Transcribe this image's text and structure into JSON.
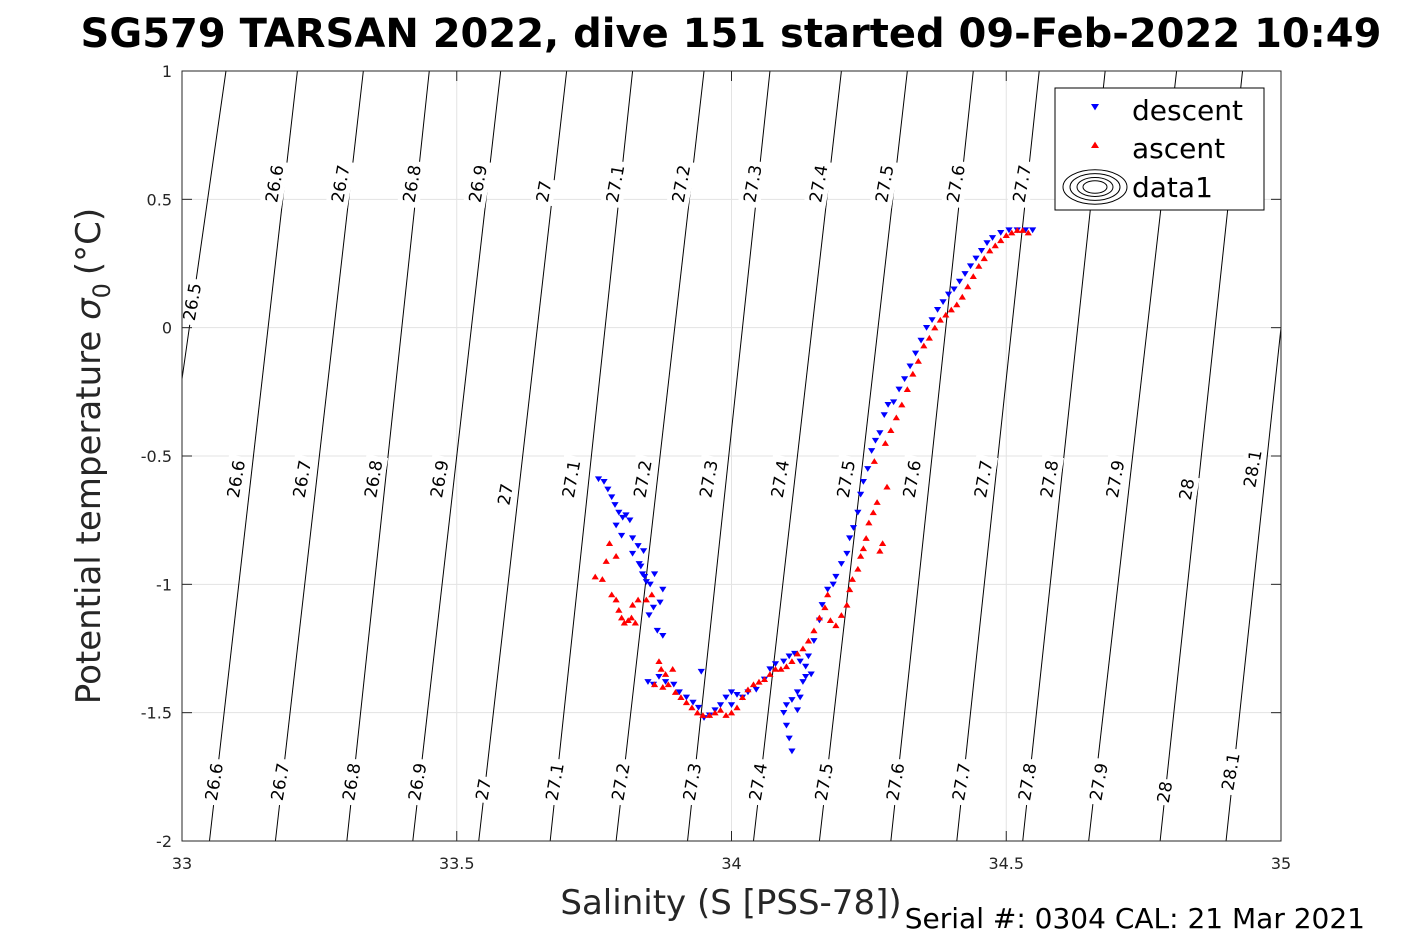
{
  "chart_data": {
    "type": "scatter",
    "title": "SG579 TARSAN 2022, dive 151 started 09-Feb-2022 10:49",
    "xlabel": "Salinity (S [PSS-78])",
    "ylabel_main": "Potential temperature",
    "ylabel_sigma": "σ",
    "ylabel_sub": "0",
    "ylabel_unit": "(°C)",
    "xlim": [
      33,
      35
    ],
    "ylim": [
      -2,
      1
    ],
    "xticks": [
      33,
      33.5,
      34,
      34.5,
      35
    ],
    "xtick_labels": [
      "33",
      "33.5",
      "34",
      "34.5",
      "35"
    ],
    "yticks": [
      -2,
      -1.5,
      -1,
      -0.5,
      0,
      0.5,
      1
    ],
    "ytick_labels": [
      "-2",
      "-1.5",
      "-1",
      "-0.5",
      "0",
      "0.5",
      "1"
    ],
    "grid": true,
    "legend_position": "top-right",
    "legend": [
      {
        "label": "descent",
        "marker": "triangle-down",
        "color": "#0000ff"
      },
      {
        "label": "ascent",
        "marker": "triangle-up",
        "color": "#ff0000"
      },
      {
        "label": "data1",
        "marker": "contour",
        "color": "#000000"
      }
    ],
    "isopycnals": [
      {
        "label": "26.5",
        "bottom_s": 32.88,
        "top_s": 33.08
      },
      {
        "label": "26.6",
        "bottom_s": 33.05,
        "top_s": 33.21
      },
      {
        "label": "26.7",
        "bottom_s": 33.17,
        "top_s": 33.33
      },
      {
        "label": "26.8",
        "bottom_s": 33.3,
        "top_s": 33.45
      },
      {
        "label": "26.9",
        "bottom_s": 33.42,
        "top_s": 33.58
      },
      {
        "label": "27",
        "bottom_s": 33.54,
        "top_s": 33.7
      },
      {
        "label": "27.1",
        "bottom_s": 33.67,
        "top_s": 33.82
      },
      {
        "label": "27.2",
        "bottom_s": 33.79,
        "top_s": 33.95
      },
      {
        "label": "27.3",
        "bottom_s": 33.92,
        "top_s": 34.07
      },
      {
        "label": "27.4",
        "bottom_s": 34.04,
        "top_s": 34.2
      },
      {
        "label": "27.5",
        "bottom_s": 34.16,
        "top_s": 34.32
      },
      {
        "label": "27.6",
        "bottom_s": 34.29,
        "top_s": 34.44
      },
      {
        "label": "27.7",
        "bottom_s": 34.41,
        "top_s": 34.56
      },
      {
        "label": "27.8",
        "bottom_s": 34.53,
        "top_s": 34.68
      },
      {
        "label": "27.9",
        "bottom_s": 34.65,
        "top_s": 34.81
      },
      {
        "label": "28",
        "bottom_s": 34.78,
        "top_s": 34.93
      },
      {
        "label": "28.1",
        "bottom_s": 34.9,
        "top_s": 35.05
      }
    ],
    "contour_labels": [
      {
        "text": "26.5",
        "s": 33.02,
        "t": 0.1
      },
      {
        "text": "26.6",
        "s": 33.17,
        "t": 0.56
      },
      {
        "text": "26.7",
        "s": 33.29,
        "t": 0.56
      },
      {
        "text": "26.8",
        "s": 33.42,
        "t": 0.56
      },
      {
        "text": "26.9",
        "s": 33.54,
        "t": 0.56
      },
      {
        "text": "27",
        "s": 33.66,
        "t": 0.53
      },
      {
        "text": "27.1",
        "s": 33.79,
        "t": 0.56
      },
      {
        "text": "27.2",
        "s": 33.91,
        "t": 0.56
      },
      {
        "text": "27.3",
        "s": 34.04,
        "t": 0.56
      },
      {
        "text": "27.4",
        "s": 34.16,
        "t": 0.56
      },
      {
        "text": "27.5",
        "s": 34.28,
        "t": 0.56
      },
      {
        "text": "27.6",
        "s": 34.41,
        "t": 0.56
      },
      {
        "text": "27.7",
        "s": 34.53,
        "t": 0.56
      },
      {
        "text": "26.6",
        "s": 33.1,
        "t": -0.59
      },
      {
        "text": "26.7",
        "s": 33.22,
        "t": -0.59
      },
      {
        "text": "26.8",
        "s": 33.35,
        "t": -0.59
      },
      {
        "text": "26.9",
        "s": 33.47,
        "t": -0.59
      },
      {
        "text": "27",
        "s": 33.59,
        "t": -0.65
      },
      {
        "text": "27.1",
        "s": 33.71,
        "t": -0.59
      },
      {
        "text": "27.2",
        "s": 33.84,
        "t": -0.59
      },
      {
        "text": "27.3",
        "s": 33.96,
        "t": -0.59
      },
      {
        "text": "27.4",
        "s": 34.09,
        "t": -0.59
      },
      {
        "text": "27.5",
        "s": 34.21,
        "t": -0.59
      },
      {
        "text": "27.6",
        "s": 34.33,
        "t": -0.59
      },
      {
        "text": "27.7",
        "s": 34.46,
        "t": -0.59
      },
      {
        "text": "27.8",
        "s": 34.58,
        "t": -0.59
      },
      {
        "text": "27.9",
        "s": 34.7,
        "t": -0.59
      },
      {
        "text": "28",
        "s": 34.83,
        "t": -0.63
      },
      {
        "text": "28.1",
        "s": 34.95,
        "t": -0.55
      },
      {
        "text": "26.6",
        "s": 33.06,
        "t": -1.77
      },
      {
        "text": "26.7",
        "s": 33.18,
        "t": -1.77
      },
      {
        "text": "26.8",
        "s": 33.31,
        "t": -1.77
      },
      {
        "text": "26.9",
        "s": 33.43,
        "t": -1.77
      },
      {
        "text": "27",
        "s": 33.55,
        "t": -1.8
      },
      {
        "text": "27.1",
        "s": 33.68,
        "t": -1.77
      },
      {
        "text": "27.2",
        "s": 33.8,
        "t": -1.77
      },
      {
        "text": "27.3",
        "s": 33.93,
        "t": -1.77
      },
      {
        "text": "27.4",
        "s": 34.05,
        "t": -1.77
      },
      {
        "text": "27.5",
        "s": 34.17,
        "t": -1.77
      },
      {
        "text": "27.6",
        "s": 34.3,
        "t": -1.77
      },
      {
        "text": "27.7",
        "s": 34.42,
        "t": -1.77
      },
      {
        "text": "27.8",
        "s": 34.54,
        "t": -1.77
      },
      {
        "text": "27.9",
        "s": 34.67,
        "t": -1.77
      },
      {
        "text": "28",
        "s": 34.79,
        "t": -1.81
      },
      {
        "text": "28.1",
        "s": 34.91,
        "t": -1.73
      }
    ],
    "series": [
      {
        "name": "descent",
        "marker": "triangle-down",
        "color": "#0000ff",
        "points": [
          [
            33.758,
            -0.59
          ],
          [
            33.768,
            -0.6
          ],
          [
            33.775,
            -0.63
          ],
          [
            33.782,
            -0.66
          ],
          [
            33.788,
            -0.69
          ],
          [
            33.795,
            -0.72
          ],
          [
            33.802,
            -0.74
          ],
          [
            33.808,
            -0.73
          ],
          [
            33.815,
            -0.75
          ],
          [
            33.79,
            -0.77
          ],
          [
            33.8,
            -0.81
          ],
          [
            33.82,
            -0.82
          ],
          [
            33.83,
            -0.85
          ],
          [
            33.84,
            -0.87
          ],
          [
            33.832,
            -0.92
          ],
          [
            33.838,
            -0.96
          ],
          [
            33.845,
            -0.99
          ],
          [
            33.852,
            -1.0
          ],
          [
            33.86,
            -0.96
          ],
          [
            33.875,
            -1.02
          ],
          [
            33.87,
            -1.07
          ],
          [
            33.858,
            -1.09
          ],
          [
            33.85,
            -1.12
          ],
          [
            33.865,
            -1.18
          ],
          [
            33.875,
            -1.2
          ],
          [
            33.82,
            -0.88
          ],
          [
            33.835,
            -0.93
          ],
          [
            33.842,
            -0.97
          ],
          [
            33.848,
            -1.38
          ],
          [
            33.858,
            -1.39
          ],
          [
            33.868,
            -1.36
          ],
          [
            33.88,
            -1.38
          ],
          [
            33.895,
            -1.39
          ],
          [
            33.905,
            -1.42
          ],
          [
            33.918,
            -1.44
          ],
          [
            33.93,
            -1.46
          ],
          [
            33.94,
            -1.48
          ],
          [
            33.95,
            -1.52
          ],
          [
            33.96,
            -1.51
          ],
          [
            33.97,
            -1.49
          ],
          [
            33.98,
            -1.47
          ],
          [
            33.99,
            -1.44
          ],
          [
            34.0,
            -1.42
          ],
          [
            34.01,
            -1.43
          ],
          [
            34.02,
            -1.44
          ],
          [
            34.03,
            -1.42
          ],
          [
            34.045,
            -1.41
          ],
          [
            34.06,
            -1.37
          ],
          [
            34.07,
            -1.33
          ],
          [
            34.08,
            -1.31
          ],
          [
            34.095,
            -1.3
          ],
          [
            34.105,
            -1.28
          ],
          [
            34.115,
            -1.27
          ],
          [
            34.125,
            -1.3
          ],
          [
            34.135,
            -1.32
          ],
          [
            34.14,
            -1.28
          ],
          [
            34.145,
            -1.35
          ],
          [
            34.13,
            -1.38
          ],
          [
            34.12,
            -1.42
          ],
          [
            34.11,
            -1.45
          ],
          [
            34.1,
            -1.47
          ],
          [
            34.095,
            -1.5
          ],
          [
            34.1,
            -1.55
          ],
          [
            34.105,
            -1.6
          ],
          [
            34.11,
            -1.65
          ],
          [
            34.12,
            -1.49
          ],
          [
            34.125,
            -1.44
          ],
          [
            34.135,
            -1.36
          ],
          [
            33.945,
            -1.34
          ],
          [
            34.0,
            -1.47
          ],
          [
            34.15,
            -1.22
          ],
          [
            34.16,
            -1.14
          ],
          [
            34.165,
            -1.08
          ],
          [
            34.175,
            -1.02
          ],
          [
            34.185,
            -1.0
          ],
          [
            34.19,
            -0.97
          ],
          [
            34.2,
            -0.92
          ],
          [
            34.21,
            -0.88
          ],
          [
            34.215,
            -0.82
          ],
          [
            34.222,
            -0.78
          ],
          [
            34.23,
            -0.72
          ],
          [
            34.235,
            -0.65
          ],
          [
            34.24,
            -0.6
          ],
          [
            34.248,
            -0.55
          ],
          [
            34.255,
            -0.48
          ],
          [
            34.262,
            -0.44
          ],
          [
            34.27,
            -0.41
          ],
          [
            34.278,
            -0.34
          ],
          [
            34.285,
            -0.3
          ],
          [
            34.295,
            -0.29
          ],
          [
            34.305,
            -0.24
          ],
          [
            34.315,
            -0.2
          ],
          [
            34.325,
            -0.15
          ],
          [
            34.335,
            -0.1
          ],
          [
            34.345,
            -0.05
          ],
          [
            34.355,
            0.0
          ],
          [
            34.365,
            0.03
          ],
          [
            34.375,
            0.07
          ],
          [
            34.385,
            0.1
          ],
          [
            34.395,
            0.13
          ],
          [
            34.405,
            0.15
          ],
          [
            34.415,
            0.18
          ],
          [
            34.425,
            0.21
          ],
          [
            34.435,
            0.24
          ],
          [
            34.445,
            0.27
          ],
          [
            34.455,
            0.3
          ],
          [
            34.465,
            0.33
          ],
          [
            34.475,
            0.35
          ],
          [
            34.49,
            0.37
          ],
          [
            34.505,
            0.38
          ],
          [
            34.52,
            0.38
          ],
          [
            34.535,
            0.38
          ],
          [
            34.548,
            0.38
          ]
        ]
      },
      {
        "name": "ascent",
        "marker": "triangle-up",
        "color": "#ff0000",
        "points": [
          [
            33.752,
            -0.97
          ],
          [
            33.765,
            -0.98
          ],
          [
            33.772,
            -0.91
          ],
          [
            33.778,
            -0.84
          ],
          [
            33.79,
            -0.89
          ],
          [
            33.782,
            -1.04
          ],
          [
            33.79,
            -1.06
          ],
          [
            33.795,
            -1.1
          ],
          [
            33.8,
            -1.13
          ],
          [
            33.805,
            -1.15
          ],
          [
            33.812,
            -1.14
          ],
          [
            33.818,
            -1.13
          ],
          [
            33.825,
            -1.15
          ],
          [
            33.82,
            -1.08
          ],
          [
            33.83,
            -1.06
          ],
          [
            33.845,
            -1.06
          ],
          [
            33.855,
            -1.04
          ],
          [
            33.868,
            -1.3
          ],
          [
            33.872,
            -1.33
          ],
          [
            33.88,
            -1.35
          ],
          [
            33.885,
            -1.39
          ],
          [
            33.893,
            -1.33
          ],
          [
            33.86,
            -1.39
          ],
          [
            33.875,
            -1.4
          ],
          [
            33.898,
            -1.42
          ],
          [
            33.908,
            -1.44
          ],
          [
            33.918,
            -1.46
          ],
          [
            33.928,
            -1.48
          ],
          [
            33.938,
            -1.5
          ],
          [
            33.948,
            -1.51
          ],
          [
            33.96,
            -1.51
          ],
          [
            33.97,
            -1.5
          ],
          [
            33.98,
            -1.49
          ],
          [
            33.99,
            -1.51
          ],
          [
            34.0,
            -1.5
          ],
          [
            34.01,
            -1.48
          ],
          [
            34.02,
            -1.44
          ],
          [
            34.03,
            -1.41
          ],
          [
            34.04,
            -1.39
          ],
          [
            34.05,
            -1.38
          ],
          [
            34.06,
            -1.37
          ],
          [
            34.07,
            -1.35
          ],
          [
            34.08,
            -1.33
          ],
          [
            34.09,
            -1.33
          ],
          [
            34.1,
            -1.32
          ],
          [
            34.11,
            -1.3
          ],
          [
            34.12,
            -1.27
          ],
          [
            34.13,
            -1.25
          ],
          [
            34.14,
            -1.22
          ],
          [
            34.15,
            -1.18
          ],
          [
            34.16,
            -1.13
          ],
          [
            34.17,
            -1.09
          ],
          [
            34.175,
            -1.04
          ],
          [
            34.18,
            -1.14
          ],
          [
            34.19,
            -1.16
          ],
          [
            34.2,
            -1.12
          ],
          [
            34.21,
            -1.08
          ],
          [
            34.215,
            -1.02
          ],
          [
            34.22,
            -0.98
          ],
          [
            34.23,
            -0.94
          ],
          [
            34.235,
            -0.89
          ],
          [
            34.24,
            -0.86
          ],
          [
            34.245,
            -0.82
          ],
          [
            34.25,
            -0.76
          ],
          [
            34.258,
            -0.72
          ],
          [
            34.265,
            -0.68
          ],
          [
            34.27,
            -0.87
          ],
          [
            34.275,
            -0.84
          ],
          [
            34.283,
            -0.62
          ],
          [
            34.26,
            -0.52
          ],
          [
            34.28,
            -0.45
          ],
          [
            34.29,
            -0.4
          ],
          [
            34.3,
            -0.35
          ],
          [
            34.31,
            -0.3
          ],
          [
            34.32,
            -0.24
          ],
          [
            34.33,
            -0.18
          ],
          [
            34.34,
            -0.13
          ],
          [
            34.35,
            -0.07
          ],
          [
            34.36,
            -0.04
          ],
          [
            34.37,
            0.0
          ],
          [
            34.38,
            0.03
          ],
          [
            34.39,
            0.05
          ],
          [
            34.4,
            0.07
          ],
          [
            34.41,
            0.09
          ],
          [
            34.42,
            0.12
          ],
          [
            34.43,
            0.16
          ],
          [
            34.44,
            0.2
          ],
          [
            34.45,
            0.24
          ],
          [
            34.46,
            0.27
          ],
          [
            34.47,
            0.3
          ],
          [
            34.48,
            0.32
          ],
          [
            34.49,
            0.34
          ],
          [
            34.5,
            0.36
          ],
          [
            34.51,
            0.37
          ],
          [
            34.52,
            0.38
          ],
          [
            34.53,
            0.38
          ],
          [
            34.54,
            0.37
          ]
        ]
      }
    ]
  },
  "footer": {
    "serial_text": "Serial #: 0304  CAL: 21 Mar 2021"
  }
}
